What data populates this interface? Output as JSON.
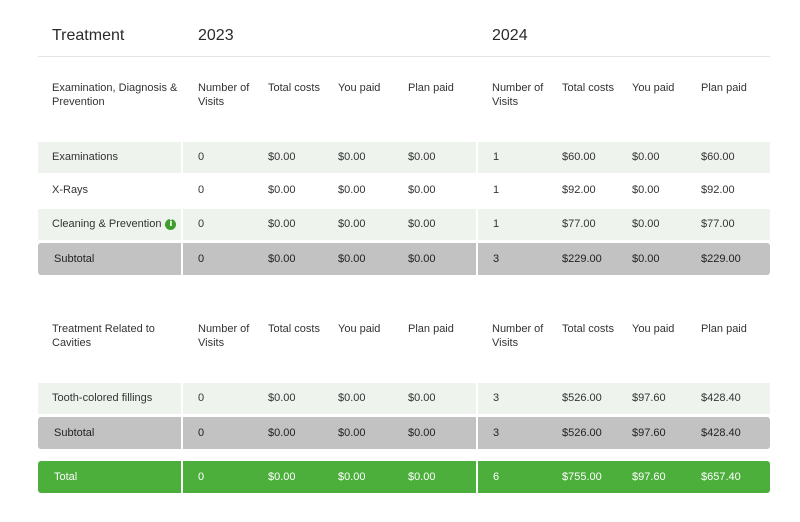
{
  "header": {
    "treatment": "Treatment",
    "year_a": "2023",
    "year_b": "2024"
  },
  "columns": {
    "visits": "Number of Visits",
    "total_costs": "Total costs",
    "you_paid": "You paid",
    "plan_paid": "Plan paid"
  },
  "sections": [
    {
      "title": "Examination, Diagnosis & Prevention",
      "rows": [
        {
          "label": "Examinations",
          "a": [
            "0",
            "$0.00",
            "$0.00",
            "$0.00"
          ],
          "b": [
            "1",
            "$60.00",
            "$0.00",
            "$60.00"
          ]
        },
        {
          "label": "X-Rays",
          "a": [
            "0",
            "$0.00",
            "$0.00",
            "$0.00"
          ],
          "b": [
            "1",
            "$92.00",
            "$0.00",
            "$92.00"
          ]
        },
        {
          "label": "Cleaning & Prevention",
          "info": "i",
          "a": [
            "0",
            "$0.00",
            "$0.00",
            "$0.00"
          ],
          "b": [
            "1",
            "$77.00",
            "$0.00",
            "$77.00"
          ]
        }
      ],
      "subtotal": {
        "label": "Subtotal",
        "a": [
          "0",
          "$0.00",
          "$0.00",
          "$0.00"
        ],
        "b": [
          "3",
          "$229.00",
          "$0.00",
          "$229.00"
        ]
      }
    },
    {
      "title": "Treatment Related to Cavities",
      "rows": [
        {
          "label": "Tooth-colored fillings",
          "a": [
            "0",
            "$0.00",
            "$0.00",
            "$0.00"
          ],
          "b": [
            "3",
            "$526.00",
            "$97.60",
            "$428.40"
          ]
        }
      ],
      "subtotal": {
        "label": "Subtotal",
        "a": [
          "0",
          "$0.00",
          "$0.00",
          "$0.00"
        ],
        "b": [
          "3",
          "$526.00",
          "$97.60",
          "$428.40"
        ]
      }
    }
  ],
  "total": {
    "label": "Total",
    "a": [
      "0",
      "$0.00",
      "$0.00",
      "$0.00"
    ],
    "b": [
      "6",
      "$755.00",
      "$97.60",
      "$657.40"
    ]
  },
  "colors": {
    "row_shade": "#eef3ee",
    "subtotal": "#c2c2c2",
    "total": "#4caf3c",
    "info_icon": "#3f9d2d"
  }
}
